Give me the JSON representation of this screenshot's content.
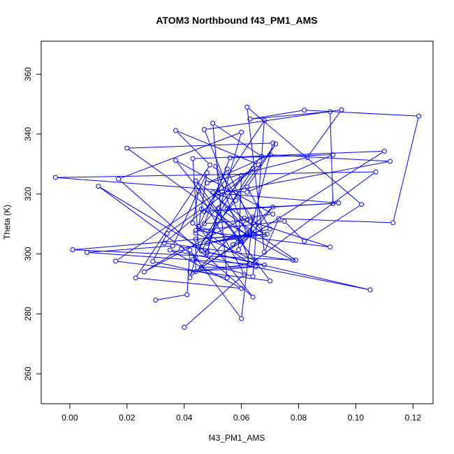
{
  "chart_data": {
    "type": "line",
    "title": "ATOM3 Northbound f43_PM1_AMS",
    "xlabel": "f43_PM1_AMS",
    "ylabel": "Theta (K)",
    "xlim": [
      -0.01,
      0.127
    ],
    "ylim": [
      250,
      371
    ],
    "x_ticks": [
      0.0,
      0.02,
      0.04,
      0.06,
      0.08,
      0.1,
      0.12
    ],
    "x_tick_labels": [
      "0.00",
      "0.02",
      "0.04",
      "0.06",
      "0.08",
      "0.10",
      "0.12"
    ],
    "y_ticks": [
      260,
      280,
      300,
      320,
      340,
      360
    ],
    "y_tick_labels": [
      "260",
      "280",
      "300",
      "320",
      "340",
      "360"
    ],
    "grid": false,
    "markers": "open-circle",
    "series_color": "#0000ff",
    "series": [
      {
        "x": [
          0.04,
          0.061,
          0.045,
          0.043,
          0.063,
          0.051,
          0.068,
          0.044,
          0.07,
          0.016,
          0.064,
          0.046,
          0.105,
          0.035,
          0.06,
          0.023,
          0.049,
          0.037,
          0.066,
          0.033,
          0.078,
          0.046,
          0.034,
          0.029,
          0.055,
          0.05,
          0.067,
          0.044,
          0.065,
          0.037,
          0.071,
          0.061,
          0.026,
          0.039,
          0.064,
          0.001,
          0.079,
          0.052,
          0.048,
          0.06,
          0.017,
          0.064,
          0.045,
          0.048,
          0.036,
          0.006,
          0.068,
          0.048,
          0.01,
          0.044,
          0.042,
          0.062,
          0.047,
          0.056,
          0.092,
          0.062,
          -0.005,
          0.107,
          0.063,
          0.042,
          0.065,
          0.046,
          0.11,
          0.043,
          0.045,
          0.058,
          0.05,
          0.063,
          0.071,
          0.02,
          0.062,
          0.047,
          0.095,
          0.083,
          0.048,
          0.07,
          0.112,
          0.052,
          0.094,
          0.047,
          0.068,
          0.064,
          0.043,
          0.06,
          0.059,
          0.071,
          0.057,
          0.06,
          0.045,
          0.055,
          0.063,
          0.091,
          0.044,
          0.075,
          0.082,
          0.102,
          0.062,
          0.068,
          0.073,
          0.113,
          0.122,
          0.082,
          0.063,
          0.091,
          0.092,
          0.055,
          0.072,
          0.062,
          0.07,
          0.048,
          0.069,
          0.044,
          0.044,
          0.063,
          0.064,
          0.06,
          0.042,
          0.041,
          0.03
        ],
        "y": [
          275.5,
          293.2,
          321.0,
          310.3,
          296.7,
          329.2,
          306.4,
          324.4,
          291.0,
          297.6,
          328.5,
          301.0,
          288.0,
          301.3,
          288.5,
          292.0,
          329.7,
          341.2,
          329.8,
          303.6,
          297.9,
          315.0,
          306.8,
          297.5,
          292.0,
          343.6,
          332.6,
          306.9,
          297.6,
          331.2,
          313.3,
          312.0,
          294.0,
          301.8,
          306.5,
          301.4,
          297.9,
          315.4,
          300.4,
          340.6,
          325.0,
          285.6,
          309.1,
          327.1,
          302.7,
          300.5,
          296.3,
          300.7,
          322.6,
          298.8,
          292.1,
          311.3,
          310.1,
          332.1,
          333.1,
          320.6,
          325.5,
          327.4,
          296.6,
          294.0,
          295.7,
          295.5,
          334.3,
          331.8,
          302.3,
          317.8,
          320.5,
          307.1,
          337.0,
          335.3,
          306.4,
          341.5,
          348.1,
          332.2,
          323.7,
          333.1,
          330.9,
          320.2,
          317.0,
          314.2,
          344.5,
          292.5,
          298.1,
          326.2,
          301.4,
          315.7,
          303.1,
          304.1,
          309.2,
          328.4,
          310.9,
          302.3,
          307.8,
          310.9,
          304.2,
          316.5,
          349.0,
          300.6,
          311.8,
          310.4,
          346.0,
          348.0,
          345.0,
          347.5,
          316.8,
          315.0,
          336.7,
          322.3,
          308.3,
          303.6,
          306.6,
          304.9,
          294.1,
          306.6,
          312.3,
          278.4,
          301.3,
          286.4,
          284.6
        ]
      }
    ]
  }
}
